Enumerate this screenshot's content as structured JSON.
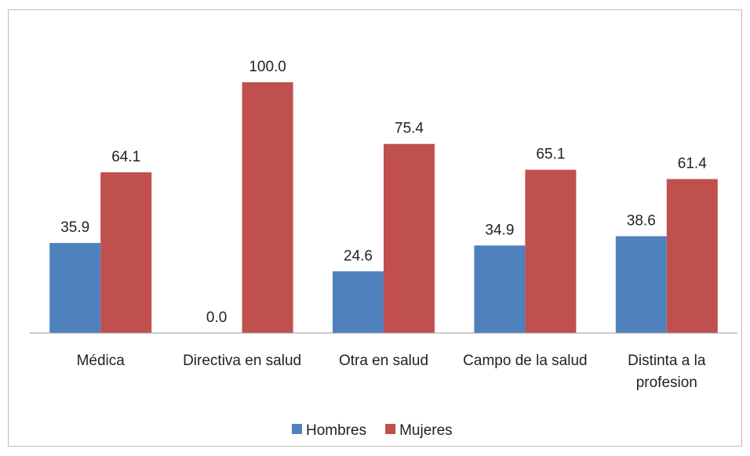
{
  "chart_data": {
    "type": "bar",
    "categories": [
      "Médica",
      "Directiva en salud",
      "Otra en salud",
      "Campo de la salud",
      "Distinta a la profesion"
    ],
    "series": [
      {
        "name": "Hombres",
        "color": "#4f81bd",
        "values": [
          35.9,
          0,
          24.6,
          34.9,
          38.6
        ],
        "value_labels": [
          "35.9",
          "0.0",
          "24.6",
          "34.9",
          "38.6"
        ]
      },
      {
        "name": "Mujeres",
        "color": "#c0504d",
        "values": [
          64.1,
          100,
          75.4,
          65.1,
          61.4
        ],
        "value_labels": [
          "64.1",
          "100.0",
          "75.4",
          "65.1",
          "61.4"
        ]
      }
    ],
    "ylim": [
      0,
      100
    ],
    "legend": "bottom"
  }
}
